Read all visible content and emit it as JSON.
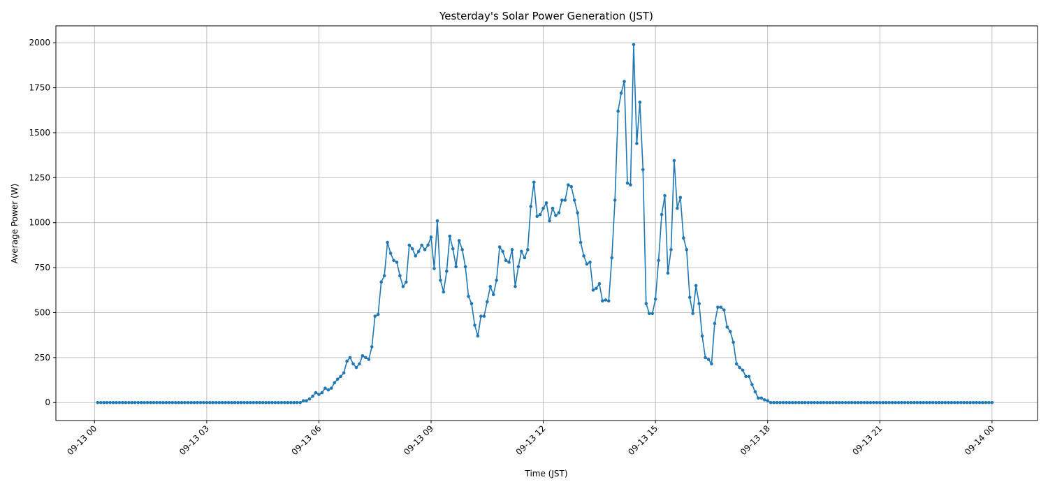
{
  "chart_data": {
    "type": "line",
    "title": "Yesterday's Solar Power Generation (JST)",
    "x_label": "Time (JST)",
    "y_label": "Average Power (W)",
    "color": "#1f77b4",
    "grid": true,
    "x": [
      "09-13 00:05",
      "09-13 00:10",
      "09-13 00:15",
      "09-13 00:20",
      "09-13 00:25",
      "09-13 00:30",
      "09-13 00:35",
      "09-13 00:40",
      "09-13 00:45",
      "09-13 00:50",
      "09-13 00:55",
      "09-13 01:00",
      "09-13 01:05",
      "09-13 01:10",
      "09-13 01:15",
      "09-13 01:20",
      "09-13 01:25",
      "09-13 01:30",
      "09-13 01:35",
      "09-13 01:40",
      "09-13 01:45",
      "09-13 01:50",
      "09-13 01:55",
      "09-13 02:00",
      "09-13 02:05",
      "09-13 02:10",
      "09-13 02:15",
      "09-13 02:20",
      "09-13 02:25",
      "09-13 02:30",
      "09-13 02:35",
      "09-13 02:40",
      "09-13 02:45",
      "09-13 02:50",
      "09-13 02:55",
      "09-13 03:00",
      "09-13 03:05",
      "09-13 03:10",
      "09-13 03:15",
      "09-13 03:20",
      "09-13 03:25",
      "09-13 03:30",
      "09-13 03:35",
      "09-13 03:40",
      "09-13 03:45",
      "09-13 03:50",
      "09-13 03:55",
      "09-13 04:00",
      "09-13 04:05",
      "09-13 04:10",
      "09-13 04:15",
      "09-13 04:20",
      "09-13 04:25",
      "09-13 04:30",
      "09-13 04:35",
      "09-13 04:40",
      "09-13 04:45",
      "09-13 04:50",
      "09-13 04:55",
      "09-13 05:00",
      "09-13 05:05",
      "09-13 05:10",
      "09-13 05:15",
      "09-13 05:20",
      "09-13 05:25",
      "09-13 05:30",
      "09-13 05:35",
      "09-13 05:40",
      "09-13 05:45",
      "09-13 05:50",
      "09-13 05:55",
      "09-13 06:00",
      "09-13 06:05",
      "09-13 06:10",
      "09-13 06:15",
      "09-13 06:20",
      "09-13 06:25",
      "09-13 06:30",
      "09-13 06:35",
      "09-13 06:40",
      "09-13 06:45",
      "09-13 06:50",
      "09-13 06:55",
      "09-13 07:00",
      "09-13 07:05",
      "09-13 07:10",
      "09-13 07:15",
      "09-13 07:20",
      "09-13 07:25",
      "09-13 07:30",
      "09-13 07:35",
      "09-13 07:40",
      "09-13 07:45",
      "09-13 07:50",
      "09-13 07:55",
      "09-13 08:00",
      "09-13 08:05",
      "09-13 08:10",
      "09-13 08:15",
      "09-13 08:20",
      "09-13 08:25",
      "09-13 08:30",
      "09-13 08:35",
      "09-13 08:40",
      "09-13 08:45",
      "09-13 08:50",
      "09-13 08:55",
      "09-13 09:00",
      "09-13 09:05",
      "09-13 09:10",
      "09-13 09:15",
      "09-13 09:20",
      "09-13 09:25",
      "09-13 09:30",
      "09-13 09:35",
      "09-13 09:40",
      "09-13 09:45",
      "09-13 09:50",
      "09-13 09:55",
      "09-13 10:00",
      "09-13 10:05",
      "09-13 10:10",
      "09-13 10:15",
      "09-13 10:20",
      "09-13 10:25",
      "09-13 10:30",
      "09-13 10:35",
      "09-13 10:40",
      "09-13 10:45",
      "09-13 10:50",
      "09-13 10:55",
      "09-13 11:00",
      "09-13 11:05",
      "09-13 11:10",
      "09-13 11:15",
      "09-13 11:20",
      "09-13 11:25",
      "09-13 11:30",
      "09-13 11:35",
      "09-13 11:40",
      "09-13 11:45",
      "09-13 11:50",
      "09-13 11:55",
      "09-13 12:00",
      "09-13 12:05",
      "09-13 12:10",
      "09-13 12:15",
      "09-13 12:20",
      "09-13 12:25",
      "09-13 12:30",
      "09-13 12:35",
      "09-13 12:40",
      "09-13 12:45",
      "09-13 12:50",
      "09-13 12:55",
      "09-13 13:00",
      "09-13 13:05",
      "09-13 13:10",
      "09-13 13:15",
      "09-13 13:20",
      "09-13 13:25",
      "09-13 13:30",
      "09-13 13:35",
      "09-13 13:40",
      "09-13 13:45",
      "09-13 13:50",
      "09-13 13:55",
      "09-13 14:00",
      "09-13 14:05",
      "09-13 14:10",
      "09-13 14:15",
      "09-13 14:20",
      "09-13 14:25",
      "09-13 14:30",
      "09-13 14:35",
      "09-13 14:40",
      "09-13 14:45",
      "09-13 14:50",
      "09-13 14:55",
      "09-13 15:00",
      "09-13 15:05",
      "09-13 15:10",
      "09-13 15:15",
      "09-13 15:20",
      "09-13 15:25",
      "09-13 15:30",
      "09-13 15:35",
      "09-13 15:40",
      "09-13 15:45",
      "09-13 15:50",
      "09-13 15:55",
      "09-13 16:00",
      "09-13 16:05",
      "09-13 16:10",
      "09-13 16:15",
      "09-13 16:20",
      "09-13 16:25",
      "09-13 16:30",
      "09-13 16:35",
      "09-13 16:40",
      "09-13 16:45",
      "09-13 16:50",
      "09-13 16:55",
      "09-13 17:00",
      "09-13 17:05",
      "09-13 17:10",
      "09-13 17:15",
      "09-13 17:20",
      "09-13 17:25",
      "09-13 17:30",
      "09-13 17:35",
      "09-13 17:40",
      "09-13 17:45",
      "09-13 17:50",
      "09-13 17:55",
      "09-13 18:00",
      "09-13 18:05",
      "09-13 18:10",
      "09-13 18:15",
      "09-13 18:20",
      "09-13 18:25",
      "09-13 18:30",
      "09-13 18:35",
      "09-13 18:40",
      "09-13 18:45",
      "09-13 18:50",
      "09-13 18:55",
      "09-13 19:00",
      "09-13 19:05",
      "09-13 19:10",
      "09-13 19:15",
      "09-13 19:20",
      "09-13 19:25",
      "09-13 19:30",
      "09-13 19:35",
      "09-13 19:40",
      "09-13 19:45",
      "09-13 19:50",
      "09-13 19:55",
      "09-13 20:00",
      "09-13 20:05",
      "09-13 20:10",
      "09-13 20:15",
      "09-13 20:20",
      "09-13 20:25",
      "09-13 20:30",
      "09-13 20:35",
      "09-13 20:40",
      "09-13 20:45",
      "09-13 20:50",
      "09-13 20:55",
      "09-13 21:00",
      "09-13 21:05",
      "09-13 21:10",
      "09-13 21:15",
      "09-13 21:20",
      "09-13 21:25",
      "09-13 21:30",
      "09-13 21:35",
      "09-13 21:40",
      "09-13 21:45",
      "09-13 21:50",
      "09-13 21:55",
      "09-13 22:00",
      "09-13 22:05",
      "09-13 22:10",
      "09-13 22:15",
      "09-13 22:20",
      "09-13 22:25",
      "09-13 22:30",
      "09-13 22:35",
      "09-13 22:40",
      "09-13 22:45",
      "09-13 22:50",
      "09-13 22:55",
      "09-13 23:00",
      "09-13 23:05",
      "09-13 23:10",
      "09-13 23:15",
      "09-13 23:20",
      "09-13 23:25",
      "09-13 23:30",
      "09-13 23:35",
      "09-13 23:40",
      "09-13 23:45",
      "09-13 23:50",
      "09-13 23:55",
      "09-14 00:00"
    ],
    "values": [
      0,
      0,
      0,
      0,
      0,
      0,
      0,
      0,
      0,
      0,
      0,
      0,
      0,
      0,
      0,
      0,
      0,
      0,
      0,
      0,
      0,
      0,
      0,
      0,
      0,
      0,
      0,
      0,
      0,
      0,
      0,
      0,
      0,
      0,
      0,
      0,
      0,
      0,
      0,
      0,
      0,
      0,
      0,
      0,
      0,
      0,
      0,
      0,
      0,
      0,
      0,
      0,
      0,
      0,
      0,
      0,
      0,
      0,
      0,
      0,
      0,
      0,
      0,
      0,
      0,
      0,
      10,
      10,
      20,
      35,
      55,
      45,
      55,
      80,
      70,
      80,
      110,
      130,
      145,
      165,
      230,
      250,
      215,
      195,
      215,
      260,
      250,
      240,
      310,
      480,
      490,
      670,
      705,
      890,
      830,
      790,
      780,
      705,
      645,
      670,
      875,
      855,
      815,
      840,
      875,
      850,
      875,
      920,
      745,
      1010,
      680,
      615,
      730,
      925,
      855,
      755,
      900,
      850,
      755,
      590,
      550,
      430,
      370,
      480,
      480,
      560,
      645,
      600,
      680,
      865,
      840,
      790,
      780,
      850,
      645,
      755,
      840,
      805,
      850,
      1090,
      1225,
      1035,
      1045,
      1080,
      1110,
      1010,
      1080,
      1040,
      1055,
      1125,
      1125,
      1210,
      1200,
      1125,
      1055,
      890,
      815,
      770,
      780,
      625,
      635,
      660,
      565,
      570,
      565,
      805,
      1125,
      1620,
      1720,
      1785,
      1220,
      1210,
      1990,
      1440,
      1670,
      1295,
      550,
      495,
      495,
      575,
      790,
      1045,
      1150,
      720,
      850,
      1345,
      1080,
      1140,
      915,
      850,
      585,
      495,
      650,
      550,
      370,
      250,
      240,
      215,
      440,
      530,
      530,
      515,
      420,
      395,
      335,
      215,
      195,
      180,
      145,
      145,
      100,
      60,
      25,
      25,
      15,
      10,
      0,
      0,
      0,
      0,
      0,
      0,
      0,
      0,
      0,
      0,
      0,
      0,
      0,
      0,
      0,
      0,
      0,
      0,
      0,
      0,
      0,
      0,
      0,
      0,
      0,
      0,
      0,
      0,
      0,
      0,
      0,
      0,
      0,
      0,
      0,
      0,
      0,
      0,
      0,
      0,
      0,
      0,
      0,
      0,
      0,
      0,
      0,
      0,
      0,
      0,
      0,
      0,
      0,
      0,
      0,
      0,
      0,
      0,
      0,
      0,
      0,
      0,
      0,
      0,
      0,
      0,
      0,
      0,
      0,
      0,
      0,
      0
    ],
    "xlim": [
      "09-12 22:58",
      "09-14 01:13"
    ],
    "xticks": [
      "09-13 00",
      "09-13 03",
      "09-13 06",
      "09-13 09",
      "09-13 12",
      "09-13 15",
      "09-13 18",
      "09-13 21",
      "09-14 00"
    ],
    "ylim": [
      -100,
      2094
    ],
    "yticks": [
      0,
      250,
      500,
      750,
      1000,
      1250,
      1500,
      1750,
      2000
    ]
  }
}
